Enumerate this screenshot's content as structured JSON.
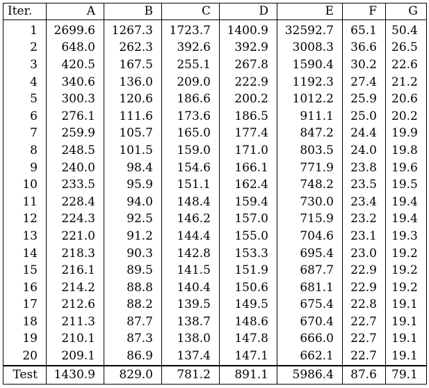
{
  "table": {
    "headers": [
      "Iter.",
      "A",
      "B",
      "C",
      "D",
      "E",
      "F",
      "G"
    ],
    "rows": [
      [
        "1",
        "2699.6",
        "1267.3",
        "1723.7",
        "1400.9",
        "32592.7",
        "65.1",
        "50.4"
      ],
      [
        "2",
        "648.0",
        "262.3",
        "392.6",
        "392.9",
        "3008.3",
        "36.6",
        "26.5"
      ],
      [
        "3",
        "420.5",
        "167.5",
        "255.1",
        "267.8",
        "1590.4",
        "30.2",
        "22.6"
      ],
      [
        "4",
        "340.6",
        "136.0",
        "209.0",
        "222.9",
        "1192.3",
        "27.4",
        "21.2"
      ],
      [
        "5",
        "300.3",
        "120.6",
        "186.6",
        "200.2",
        "1012.2",
        "25.9",
        "20.6"
      ],
      [
        "6",
        "276.1",
        "111.6",
        "173.6",
        "186.5",
        "911.1",
        "25.0",
        "20.2"
      ],
      [
        "7",
        "259.9",
        "105.7",
        "165.0",
        "177.4",
        "847.2",
        "24.4",
        "19.9"
      ],
      [
        "8",
        "248.5",
        "101.5",
        "159.0",
        "171.0",
        "803.5",
        "24.0",
        "19.8"
      ],
      [
        "9",
        "240.0",
        "98.4",
        "154.6",
        "166.1",
        "771.9",
        "23.8",
        "19.6"
      ],
      [
        "10",
        "233.5",
        "95.9",
        "151.1",
        "162.4",
        "748.2",
        "23.5",
        "19.5"
      ],
      [
        "11",
        "228.4",
        "94.0",
        "148.4",
        "159.4",
        "730.0",
        "23.4",
        "19.4"
      ],
      [
        "12",
        "224.3",
        "92.5",
        "146.2",
        "157.0",
        "715.9",
        "23.2",
        "19.4"
      ],
      [
        "13",
        "221.0",
        "91.2",
        "144.4",
        "155.0",
        "704.6",
        "23.1",
        "19.3"
      ],
      [
        "14",
        "218.3",
        "90.3",
        "142.8",
        "153.3",
        "695.4",
        "23.0",
        "19.2"
      ],
      [
        "15",
        "216.1",
        "89.5",
        "141.5",
        "151.9",
        "687.7",
        "22.9",
        "19.2"
      ],
      [
        "16",
        "214.2",
        "88.8",
        "140.4",
        "150.6",
        "681.1",
        "22.9",
        "19.2"
      ],
      [
        "17",
        "212.6",
        "88.2",
        "139.5",
        "149.5",
        "675.4",
        "22.8",
        "19.1"
      ],
      [
        "18",
        "211.3",
        "87.7",
        "138.7",
        "148.6",
        "670.4",
        "22.7",
        "19.1"
      ],
      [
        "19",
        "210.1",
        "87.3",
        "138.0",
        "147.8",
        "666.0",
        "22.7",
        "19.1"
      ],
      [
        "20",
        "209.1",
        "86.9",
        "137.4",
        "147.1",
        "662.1",
        "22.7",
        "19.1"
      ]
    ],
    "footer": [
      "Test",
      "1430.9",
      "829.0",
      "781.2",
      "891.1",
      "5986.4",
      "87.6",
      "79.1"
    ]
  }
}
